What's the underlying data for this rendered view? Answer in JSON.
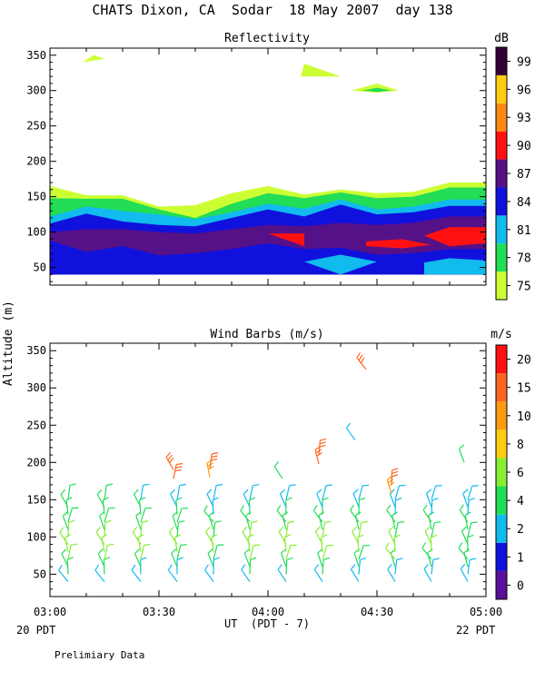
{
  "title": "CHATS Dixon, CA  Sodar  18 May 2007  day 138",
  "shared_ylabel": "Altitude (m)",
  "xlabel": "UT  (PDT - 7)",
  "footer_left": "20 PDT",
  "footer_right": "22 PDT",
  "note": "Prelimiary Data",
  "chart_data": [
    {
      "type": "area",
      "title": "Reflectivity",
      "colorbar_label": "dB",
      "colorbar_ticks": [
        "75",
        "78",
        "81",
        "84",
        "87",
        "90",
        "93",
        "96",
        "99"
      ],
      "colorbar_colors": [
        "#ccff33",
        "#22dd55",
        "#11bbee",
        "#1111dd",
        "#551188",
        "#ff1111",
        "#ff8811",
        "#ffcc11",
        "#330033"
      ],
      "x_ticks": [
        "03:00",
        "03:30",
        "04:00",
        "04:30",
        "05:00"
      ],
      "y_ticks": [
        "50",
        "100",
        "150",
        "200",
        "250",
        "300",
        "350"
      ],
      "xlim": [
        0,
        120
      ],
      "ylim": [
        25,
        360
      ],
      "x_minutes": [
        0,
        10,
        20,
        30,
        40,
        50,
        60,
        70,
        80,
        90,
        100,
        110,
        120
      ],
      "layers": [
        {
          "db": 75,
          "top": [
            165,
            152,
            152,
            136,
            138,
            155,
            165,
            153,
            160,
            155,
            157,
            170,
            170
          ]
        },
        {
          "db": 78,
          "top": [
            148,
            147,
            147,
            132,
            120,
            140,
            155,
            148,
            156,
            148,
            150,
            163,
            163
          ]
        },
        {
          "db": 81,
          "top": [
            122,
            136,
            130,
            125,
            118,
            128,
            140,
            133,
            146,
            132,
            136,
            146,
            146
          ]
        },
        {
          "db": 84,
          "top": [
            112,
            126,
            115,
            110,
            108,
            120,
            132,
            122,
            139,
            125,
            128,
            137,
            137
          ]
        },
        {
          "db": 87,
          "top": [
            100,
            104,
            104,
            100,
            98,
            104,
            110,
            108,
            113,
            110,
            113,
            122,
            122
          ]
        },
        {
          "db": 84,
          "top": [
            88,
            72,
            80,
            67,
            70,
            76,
            84,
            76,
            78,
            68,
            70,
            76,
            76
          ]
        }
      ],
      "patches": [
        {
          "db": 90,
          "points": [
            [
              60,
              98
            ],
            [
              70,
              98
            ],
            [
              70,
              80
            ]
          ]
        },
        {
          "db": 90,
          "points": [
            [
              87,
              87
            ],
            [
              97,
              90
            ],
            [
              105,
              82
            ],
            [
              97,
              77
            ],
            [
              87,
              80
            ]
          ]
        },
        {
          "db": 90,
          "points": [
            [
              103,
              95
            ],
            [
              110,
              107
            ],
            [
              120,
              107
            ],
            [
              120,
              84
            ],
            [
              110,
              80
            ]
          ]
        },
        {
          "db": 81,
          "points": [
            [
              70,
              58
            ],
            [
              80,
              68
            ],
            [
              90,
              58
            ],
            [
              80,
              40
            ]
          ]
        },
        {
          "db": 81,
          "points": [
            [
              103,
              40
            ],
            [
              120,
              40
            ],
            [
              120,
              60
            ],
            [
              110,
              63
            ],
            [
              103,
              57
            ]
          ]
        },
        {
          "db": 75,
          "points": [
            [
              9,
              340
            ],
            [
              12,
              350
            ],
            [
              15,
              345
            ]
          ]
        },
        {
          "db": 75,
          "points": [
            [
              69,
              320
            ],
            [
              70,
              338
            ],
            [
              80,
              320
            ]
          ]
        },
        {
          "db": 75,
          "points": [
            [
              83,
              300
            ],
            [
              90,
              310
            ],
            [
              96,
              300
            ],
            [
              90,
              297
            ]
          ]
        },
        {
          "db": 78,
          "points": [
            [
              86,
              300
            ],
            [
              90,
              304
            ],
            [
              94,
              300
            ],
            [
              90,
              298
            ]
          ]
        }
      ]
    },
    {
      "type": "scatter",
      "title": "Wind Barbs (m/s)",
      "colorbar_label": "m/s",
      "colorbar_ticks": [
        "0",
        "1",
        "2",
        "4",
        "6",
        "8",
        "10",
        "15",
        "20"
      ],
      "colorbar_colors": [
        "#5a1099",
        "#1111dd",
        "#11bbee",
        "#22dd55",
        "#88ee33",
        "#ffcc11",
        "#ff9911",
        "#ff6622",
        "#ff1111"
      ],
      "x_ticks": [
        "03:00",
        "03:30",
        "04:00",
        "04:30",
        "05:00"
      ],
      "y_ticks": [
        "50",
        "100",
        "150",
        "200",
        "250",
        "300",
        "350"
      ],
      "xlim": [
        0,
        120
      ],
      "ylim": [
        20,
        360
      ],
      "columns_minutes": [
        5,
        15,
        25,
        35,
        45,
        55,
        65,
        75,
        85,
        95,
        105,
        115
      ],
      "altitudes_m": [
        40,
        50,
        60,
        70,
        80,
        90,
        100,
        110,
        120,
        130,
        140,
        150
      ],
      "speed_ms": [
        [
          2,
          4,
          5,
          7,
          7,
          7,
          6,
          5,
          5,
          5,
          4,
          4
        ],
        [
          2,
          4,
          5,
          6,
          6,
          6,
          6,
          5,
          5,
          5,
          4,
          4
        ],
        [
          2,
          3,
          4,
          6,
          6,
          6,
          6,
          5,
          5,
          4,
          4,
          3
        ],
        [
          2,
          3,
          4,
          5,
          6,
          6,
          5,
          5,
          4,
          4,
          3,
          3
        ],
        [
          2,
          3,
          4,
          5,
          6,
          6,
          5,
          4,
          4,
          3,
          3,
          2
        ],
        [
          2,
          4,
          5,
          6,
          7,
          7,
          6,
          5,
          5,
          4,
          3,
          3
        ],
        [
          2,
          4,
          5,
          6,
          7,
          7,
          6,
          5,
          4,
          4,
          3,
          3
        ],
        [
          2,
          4,
          5,
          6,
          7,
          7,
          6,
          5,
          5,
          4,
          3,
          2
        ],
        [
          2,
          3,
          4,
          5,
          6,
          6,
          6,
          5,
          4,
          4,
          3,
          2
        ],
        [
          2,
          3,
          5,
          6,
          6,
          6,
          5,
          5,
          4,
          3,
          3,
          3
        ],
        [
          2,
          3,
          4,
          5,
          6,
          6,
          5,
          4,
          4,
          3,
          2,
          2
        ],
        [
          2,
          3,
          4,
          5,
          5,
          5,
          5,
          4,
          4,
          3,
          3,
          2
        ]
      ],
      "isolated": [
        {
          "x_min": 34,
          "alt": 178,
          "speed": 15
        },
        {
          "x_min": 34,
          "alt": 190,
          "speed": 16
        },
        {
          "x_min": 44,
          "alt": 180,
          "speed": 14
        },
        {
          "x_min": 44,
          "alt": 192,
          "speed": 15
        },
        {
          "x_min": 64,
          "alt": 178,
          "speed": 4
        },
        {
          "x_min": 74,
          "alt": 198,
          "speed": 18
        },
        {
          "x_min": 74,
          "alt": 210,
          "speed": 19
        },
        {
          "x_min": 84,
          "alt": 230,
          "speed": 2
        },
        {
          "x_min": 94,
          "alt": 158,
          "speed": 14
        },
        {
          "x_min": 94,
          "alt": 170,
          "speed": 15
        },
        {
          "x_min": 87,
          "alt": 325,
          "speed": 16
        },
        {
          "x_min": 114,
          "alt": 200,
          "speed": 5
        }
      ]
    }
  ]
}
